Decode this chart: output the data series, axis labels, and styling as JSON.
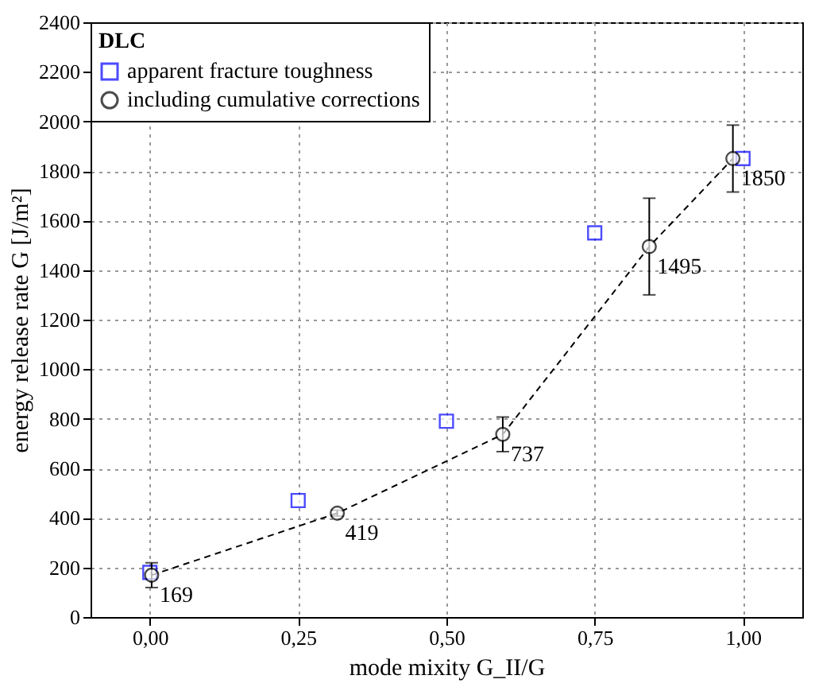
{
  "chart_data": {
    "type": "scatter",
    "xlabel": "mode mixity G_II/G",
    "ylabel": "energy release rate  G [J/m²]",
    "legend_title": "DLC",
    "legend": "top left",
    "grid": true,
    "xlim": [
      -0.1,
      1.1
    ],
    "xticks": [
      {
        "value": 0,
        "label": "0,00"
      },
      {
        "value": 0.25,
        "label": "0,25"
      },
      {
        "value": 0.5,
        "label": "0,50"
      },
      {
        "value": 0.75,
        "label": "0,75"
      },
      {
        "value": 1,
        "label": "1,00"
      }
    ],
    "ylim": [
      0,
      2400
    ],
    "yticks": [
      0,
      200,
      400,
      600,
      800,
      1000,
      1200,
      1400,
      1600,
      1800,
      2000,
      2200,
      2400
    ],
    "series": [
      {
        "name": "apparent fracture toughness",
        "type": "scatter",
        "marker": "square",
        "color": "#0000ff",
        "x": [
          0,
          0.25,
          0.5,
          0.75,
          1.0
        ],
        "values": [
          180,
          470,
          790,
          1550,
          1850
        ]
      },
      {
        "name": "including cumulative corrections",
        "type": "line",
        "marker": "circle",
        "line_style": "dashed",
        "color": "#000000",
        "x": [
          0.003,
          0.316,
          0.595,
          0.842,
          0.983
        ],
        "values": [
          169,
          419,
          737,
          1495,
          1850
        ],
        "errors": [
          50,
          12,
          70,
          195,
          135
        ],
        "data_labels": true
      }
    ]
  }
}
